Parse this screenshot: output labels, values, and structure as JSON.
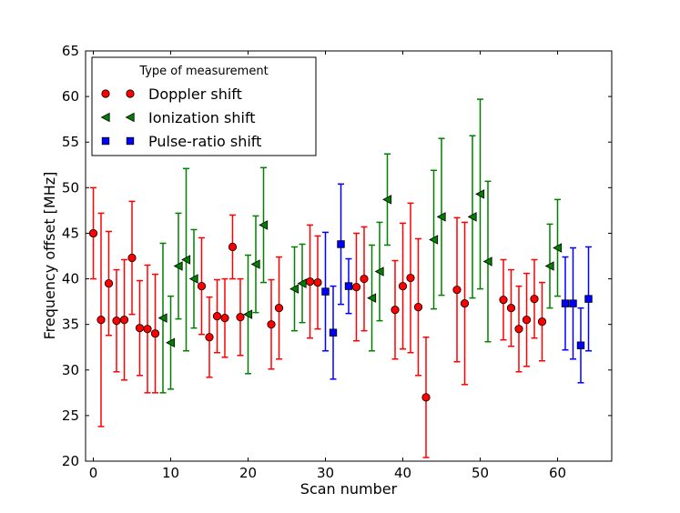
{
  "chart_data": {
    "type": "scatter",
    "xlabel": "Scan number",
    "ylabel": "Frequency offset [MHz]",
    "xlim": [
      -1,
      67
    ],
    "ylim": [
      20,
      65
    ],
    "xticks": [
      0,
      10,
      20,
      30,
      40,
      50,
      60
    ],
    "yticks": [
      20,
      25,
      30,
      35,
      40,
      45,
      50,
      55,
      60,
      65
    ],
    "grid": false,
    "legend": {
      "title": "Type of measurement",
      "position": "top-left"
    },
    "series": [
      {
        "name": "Doppler shift",
        "marker": "circle",
        "color": "#ff0000",
        "points": [
          {
            "x": 0,
            "y": 45.0,
            "err": 5.0
          },
          {
            "x": 1,
            "y": 35.5,
            "err": 11.7
          },
          {
            "x": 2,
            "y": 39.5,
            "err": 5.7
          },
          {
            "x": 3,
            "y": 35.4,
            "err": 5.6
          },
          {
            "x": 4,
            "y": 35.5,
            "err": 6.6
          },
          {
            "x": 5,
            "y": 42.3,
            "err": 6.2
          },
          {
            "x": 6,
            "y": 34.6,
            "err": 5.2
          },
          {
            "x": 7,
            "y": 34.5,
            "err": 7.0
          },
          {
            "x": 8,
            "y": 34.0,
            "err": 6.5
          },
          {
            "x": 14,
            "y": 39.2,
            "err": 5.3
          },
          {
            "x": 15,
            "y": 33.6,
            "err": 4.4
          },
          {
            "x": 16,
            "y": 35.9,
            "err": 4.0
          },
          {
            "x": 17,
            "y": 35.7,
            "err": 4.3
          },
          {
            "x": 18,
            "y": 43.5,
            "err": 3.5
          },
          {
            "x": 19,
            "y": 35.8,
            "err": 4.2
          },
          {
            "x": 23,
            "y": 35.0,
            "err": 4.9
          },
          {
            "x": 24,
            "y": 36.8,
            "err": 5.6
          },
          {
            "x": 28,
            "y": 39.7,
            "err": 6.2
          },
          {
            "x": 29,
            "y": 39.6,
            "err": 5.1
          },
          {
            "x": 34,
            "y": 39.1,
            "err": 5.9
          },
          {
            "x": 35,
            "y": 40.0,
            "err": 5.7
          },
          {
            "x": 39,
            "y": 36.6,
            "err": 5.4
          },
          {
            "x": 40,
            "y": 39.2,
            "err": 6.9
          },
          {
            "x": 41,
            "y": 40.1,
            "err": 8.2
          },
          {
            "x": 42,
            "y": 36.9,
            "err": 7.5
          },
          {
            "x": 43,
            "y": 27.0,
            "err": 6.6
          },
          {
            "x": 47,
            "y": 38.8,
            "err": 7.9
          },
          {
            "x": 48,
            "y": 37.3,
            "err": 8.9
          },
          {
            "x": 53,
            "y": 37.7,
            "err": 4.4
          },
          {
            "x": 54,
            "y": 36.8,
            "err": 4.2
          },
          {
            "x": 55,
            "y": 34.5,
            "err": 4.7
          },
          {
            "x": 56,
            "y": 35.5,
            "err": 5.1
          },
          {
            "x": 57,
            "y": 37.8,
            "err": 4.3
          },
          {
            "x": 58,
            "y": 35.3,
            "err": 4.3
          }
        ]
      },
      {
        "name": "Ionization shift",
        "marker": "triangle-left",
        "color": "#007f00",
        "points": [
          {
            "x": 9,
            "y": 35.7,
            "err": 8.2
          },
          {
            "x": 10,
            "y": 33.0,
            "err": 5.1
          },
          {
            "x": 11,
            "y": 41.4,
            "err": 5.8
          },
          {
            "x": 12,
            "y": 42.1,
            "err": 10.0
          },
          {
            "x": 13,
            "y": 40.0,
            "err": 5.4
          },
          {
            "x": 20,
            "y": 36.1,
            "err": 6.5
          },
          {
            "x": 21,
            "y": 41.6,
            "err": 5.3
          },
          {
            "x": 22,
            "y": 45.9,
            "err": 6.3
          },
          {
            "x": 26,
            "y": 38.9,
            "err": 4.6
          },
          {
            "x": 27,
            "y": 39.5,
            "err": 4.3
          },
          {
            "x": 36,
            "y": 37.9,
            "err": 5.8
          },
          {
            "x": 37,
            "y": 40.8,
            "err": 5.4
          },
          {
            "x": 38,
            "y": 48.7,
            "err": 5.0
          },
          {
            "x": 44,
            "y": 44.3,
            "err": 7.6
          },
          {
            "x": 45,
            "y": 46.8,
            "err": 8.6
          },
          {
            "x": 49,
            "y": 46.8,
            "err": 8.9
          },
          {
            "x": 50,
            "y": 49.3,
            "err": 10.4
          },
          {
            "x": 51,
            "y": 41.9,
            "err": 8.8
          },
          {
            "x": 59,
            "y": 41.4,
            "err": 4.6
          },
          {
            "x": 60,
            "y": 43.4,
            "err": 5.3
          }
        ]
      },
      {
        "name": "Pulse-ratio shift",
        "marker": "square",
        "color": "#0000ff",
        "points": [
          {
            "x": 30,
            "y": 38.6,
            "err": 6.5
          },
          {
            "x": 31,
            "y": 34.1,
            "err": 5.1
          },
          {
            "x": 32,
            "y": 43.8,
            "err": 6.6
          },
          {
            "x": 33,
            "y": 39.2,
            "err": 3.0
          },
          {
            "x": 61,
            "y": 37.3,
            "err": 5.1
          },
          {
            "x": 62,
            "y": 37.3,
            "err": 6.1
          },
          {
            "x": 63,
            "y": 32.7,
            "err": 4.1
          },
          {
            "x": 64,
            "y": 37.8,
            "err": 5.7
          }
        ]
      }
    ]
  }
}
